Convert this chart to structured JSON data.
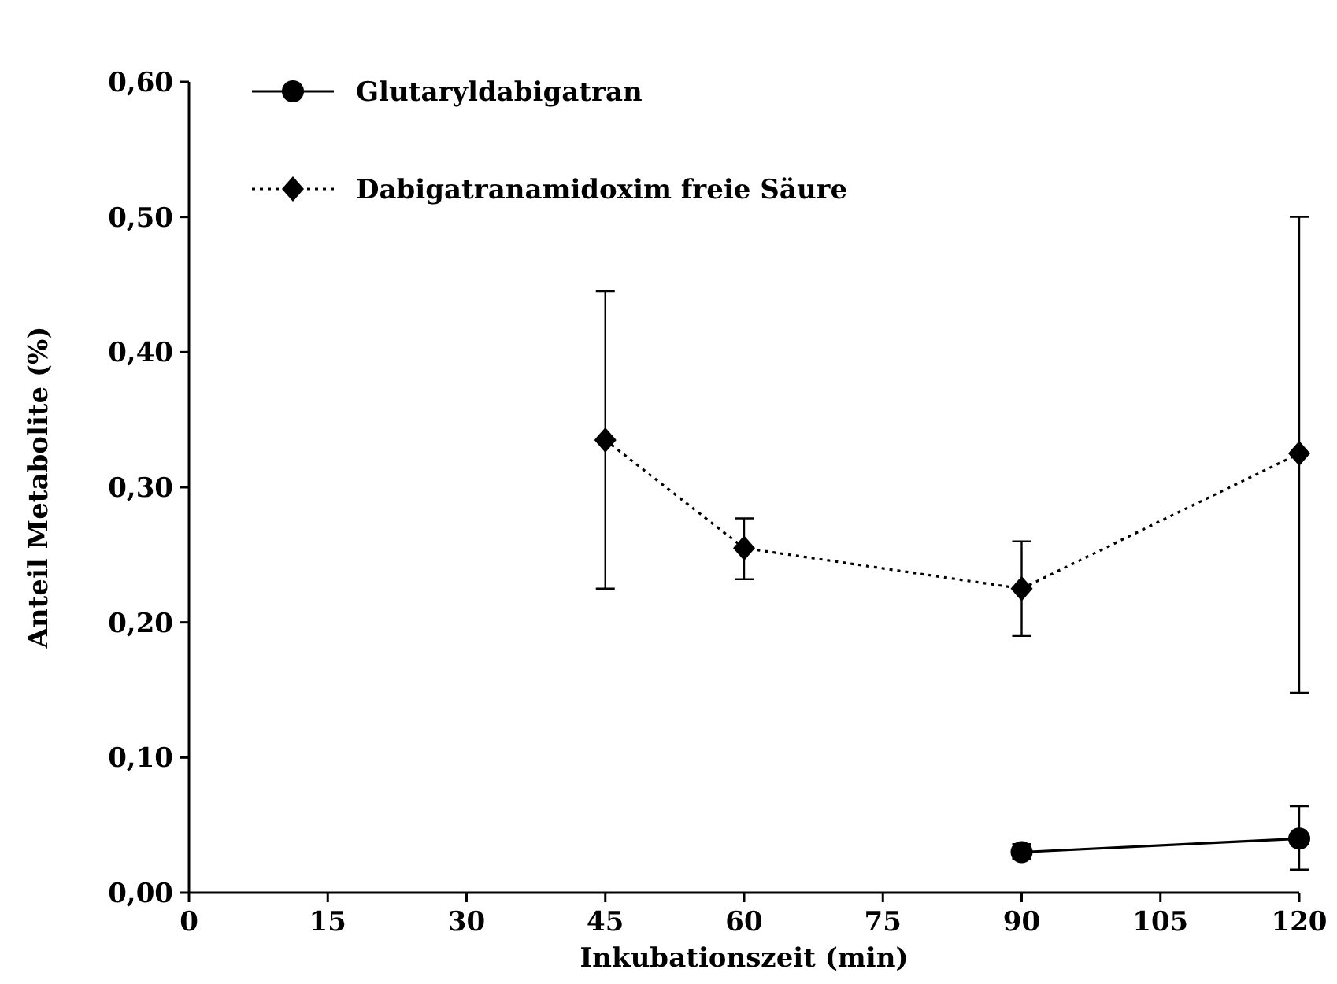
{
  "chart_data": {
    "type": "line",
    "xlabel": "Inkubationszeit (min)",
    "ylabel": "Anteil Metabolite (%)",
    "xlim": [
      0,
      120
    ],
    "xticks": [
      0,
      15,
      30,
      45,
      60,
      75,
      90,
      105,
      120
    ],
    "ylim": [
      0,
      0.6
    ],
    "yticks": [
      {
        "value": 0,
        "label": "0,00"
      },
      {
        "value": 0.1,
        "label": "0,10"
      },
      {
        "value": 0.2,
        "label": "0,20"
      },
      {
        "value": 0.3,
        "label": "0,30"
      },
      {
        "value": 0.4,
        "label": "0,40"
      },
      {
        "value": 0.5,
        "label": "0,50"
      },
      {
        "value": 0.6,
        "label": "0,60"
      }
    ],
    "grid": false,
    "legend": "top left",
    "series": [
      {
        "name": "Glutaryldabigatran",
        "color": "#000000",
        "marker": "circle",
        "line_style": "solid",
        "x": [
          90,
          120
        ],
        "values": [
          0.03,
          0.04
        ],
        "errors": [
          [
            0.025,
            0.036
          ],
          [
            0.017,
            0.064
          ]
        ]
      },
      {
        "name": "Dabigatranamidoxim freie Säure",
        "color": "#000000",
        "marker": "diamond",
        "line_style": "dotted",
        "x": [
          45,
          60,
          90,
          120
        ],
        "values": [
          0.335,
          0.255,
          0.225,
          0.325
        ],
        "errors": [
          [
            0.225,
            0.445
          ],
          [
            0.232,
            0.277
          ],
          [
            0.19,
            0.26
          ],
          [
            0.148,
            0.5
          ]
        ]
      }
    ]
  }
}
